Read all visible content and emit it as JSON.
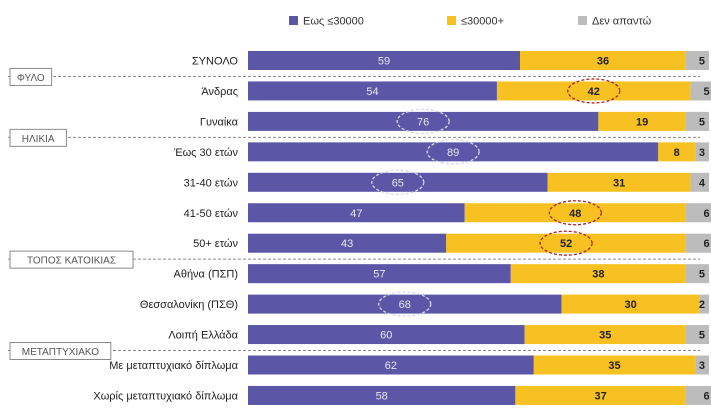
{
  "chart_data": {
    "type": "bar",
    "stacked": true,
    "orientation": "horizontal",
    "title": "",
    "xlabel": "",
    "ylabel": "",
    "xlim": [
      0,
      100
    ],
    "grid": false,
    "legend_position": "top",
    "series": [
      {
        "name": "Εως ≤30000",
        "color": "#5b57a6",
        "values": [
          59,
          54,
          76,
          89,
          65,
          47,
          43,
          57,
          68,
          60,
          62,
          58
        ]
      },
      {
        "name": "≤30000+",
        "color": "#f7c221",
        "values": [
          36,
          42,
          19,
          8,
          31,
          48,
          52,
          38,
          30,
          35,
          35,
          37
        ]
      },
      {
        "name": "Δεν απαντώ",
        "color": "#bcbcbc",
        "values": [
          5,
          5,
          5,
          3,
          4,
          6,
          6,
          5,
          2,
          5,
          3,
          6
        ]
      }
    ],
    "categories": [
      "ΣΥΝΟΛΟ",
      "Άνδρας",
      "Γυναίκα",
      "Έως 30 ετών",
      "31-40 ετών",
      "41-50 ετών",
      "50+ ετών",
      "Αθήνα (ΠΣΠ)",
      "Θεσσαλονίκη (ΠΣΘ)",
      "Λοιπή Ελλάδα",
      "Με μεταπτυχιακό δίπλωμα",
      "Χωρίς μεταπτυχιακό δίπλωμα"
    ],
    "groups": [
      {
        "label": "ΦΥΛΟ",
        "start_index": 1
      },
      {
        "label": "ΗΛΙΚΙΑ",
        "start_index": 3
      },
      {
        "label": "ΤΟΠΟΣ ΚΑΤΟΙΚΙΑΣ",
        "start_index": 7
      },
      {
        "label": "ΜΕΤΑΠΤΥΧΙΑΚΟ",
        "start_index": 10
      }
    ],
    "annotations": [
      {
        "category_index": 1,
        "series_index": 1,
        "style": "dashed-ellipse",
        "color": "#b22222"
      },
      {
        "category_index": 2,
        "series_index": 0,
        "style": "dashed-ellipse",
        "color": "#d8d8ec"
      },
      {
        "category_index": 3,
        "series_index": 0,
        "style": "dashed-ellipse",
        "color": "#d8d8ec"
      },
      {
        "category_index": 4,
        "series_index": 0,
        "style": "dashed-ellipse",
        "color": "#d8d8ec"
      },
      {
        "category_index": 5,
        "series_index": 1,
        "style": "dashed-ellipse",
        "color": "#b22222"
      },
      {
        "category_index": 6,
        "series_index": 1,
        "style": "dashed-ellipse",
        "color": "#b22222"
      },
      {
        "category_index": 8,
        "series_index": 0,
        "style": "dashed-ellipse",
        "color": "#d8d8ec"
      }
    ]
  }
}
